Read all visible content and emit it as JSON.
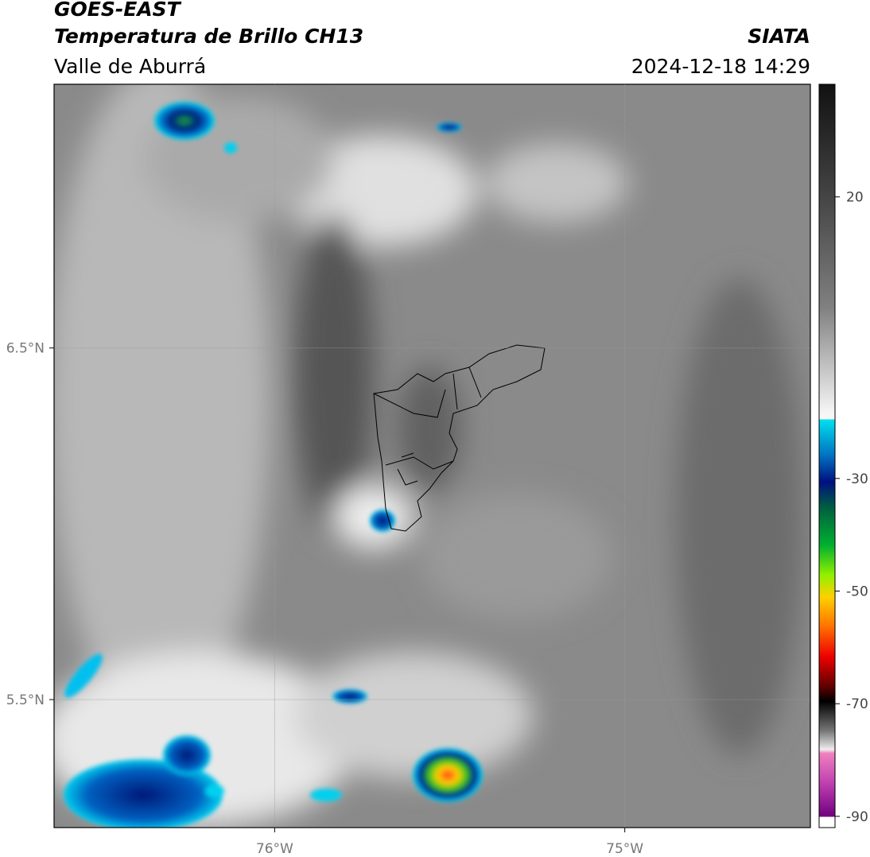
{
  "header": {
    "title": "GOES-EAST",
    "subtitle": "Temperatura de Brillo CH13",
    "region": "Valle de Aburrá",
    "source": "SIATA",
    "timestamp": "2024-12-18 14:29"
  },
  "map": {
    "xlim": [
      -76.63,
      -74.47
    ],
    "ylim": [
      5.136,
      7.25
    ],
    "xticks": [
      {
        "value": -76,
        "label": "76°W"
      },
      {
        "value": -75,
        "label": "75°W"
      }
    ],
    "yticks": [
      {
        "value": 6.5,
        "label": "6.5°N"
      },
      {
        "value": 5.5,
        "label": "5.5°N"
      }
    ],
    "grid": true
  },
  "colorbar": {
    "lim": [
      -92,
      40
    ],
    "ticks": [
      20,
      -30,
      -50,
      -70,
      -90
    ]
  }
}
